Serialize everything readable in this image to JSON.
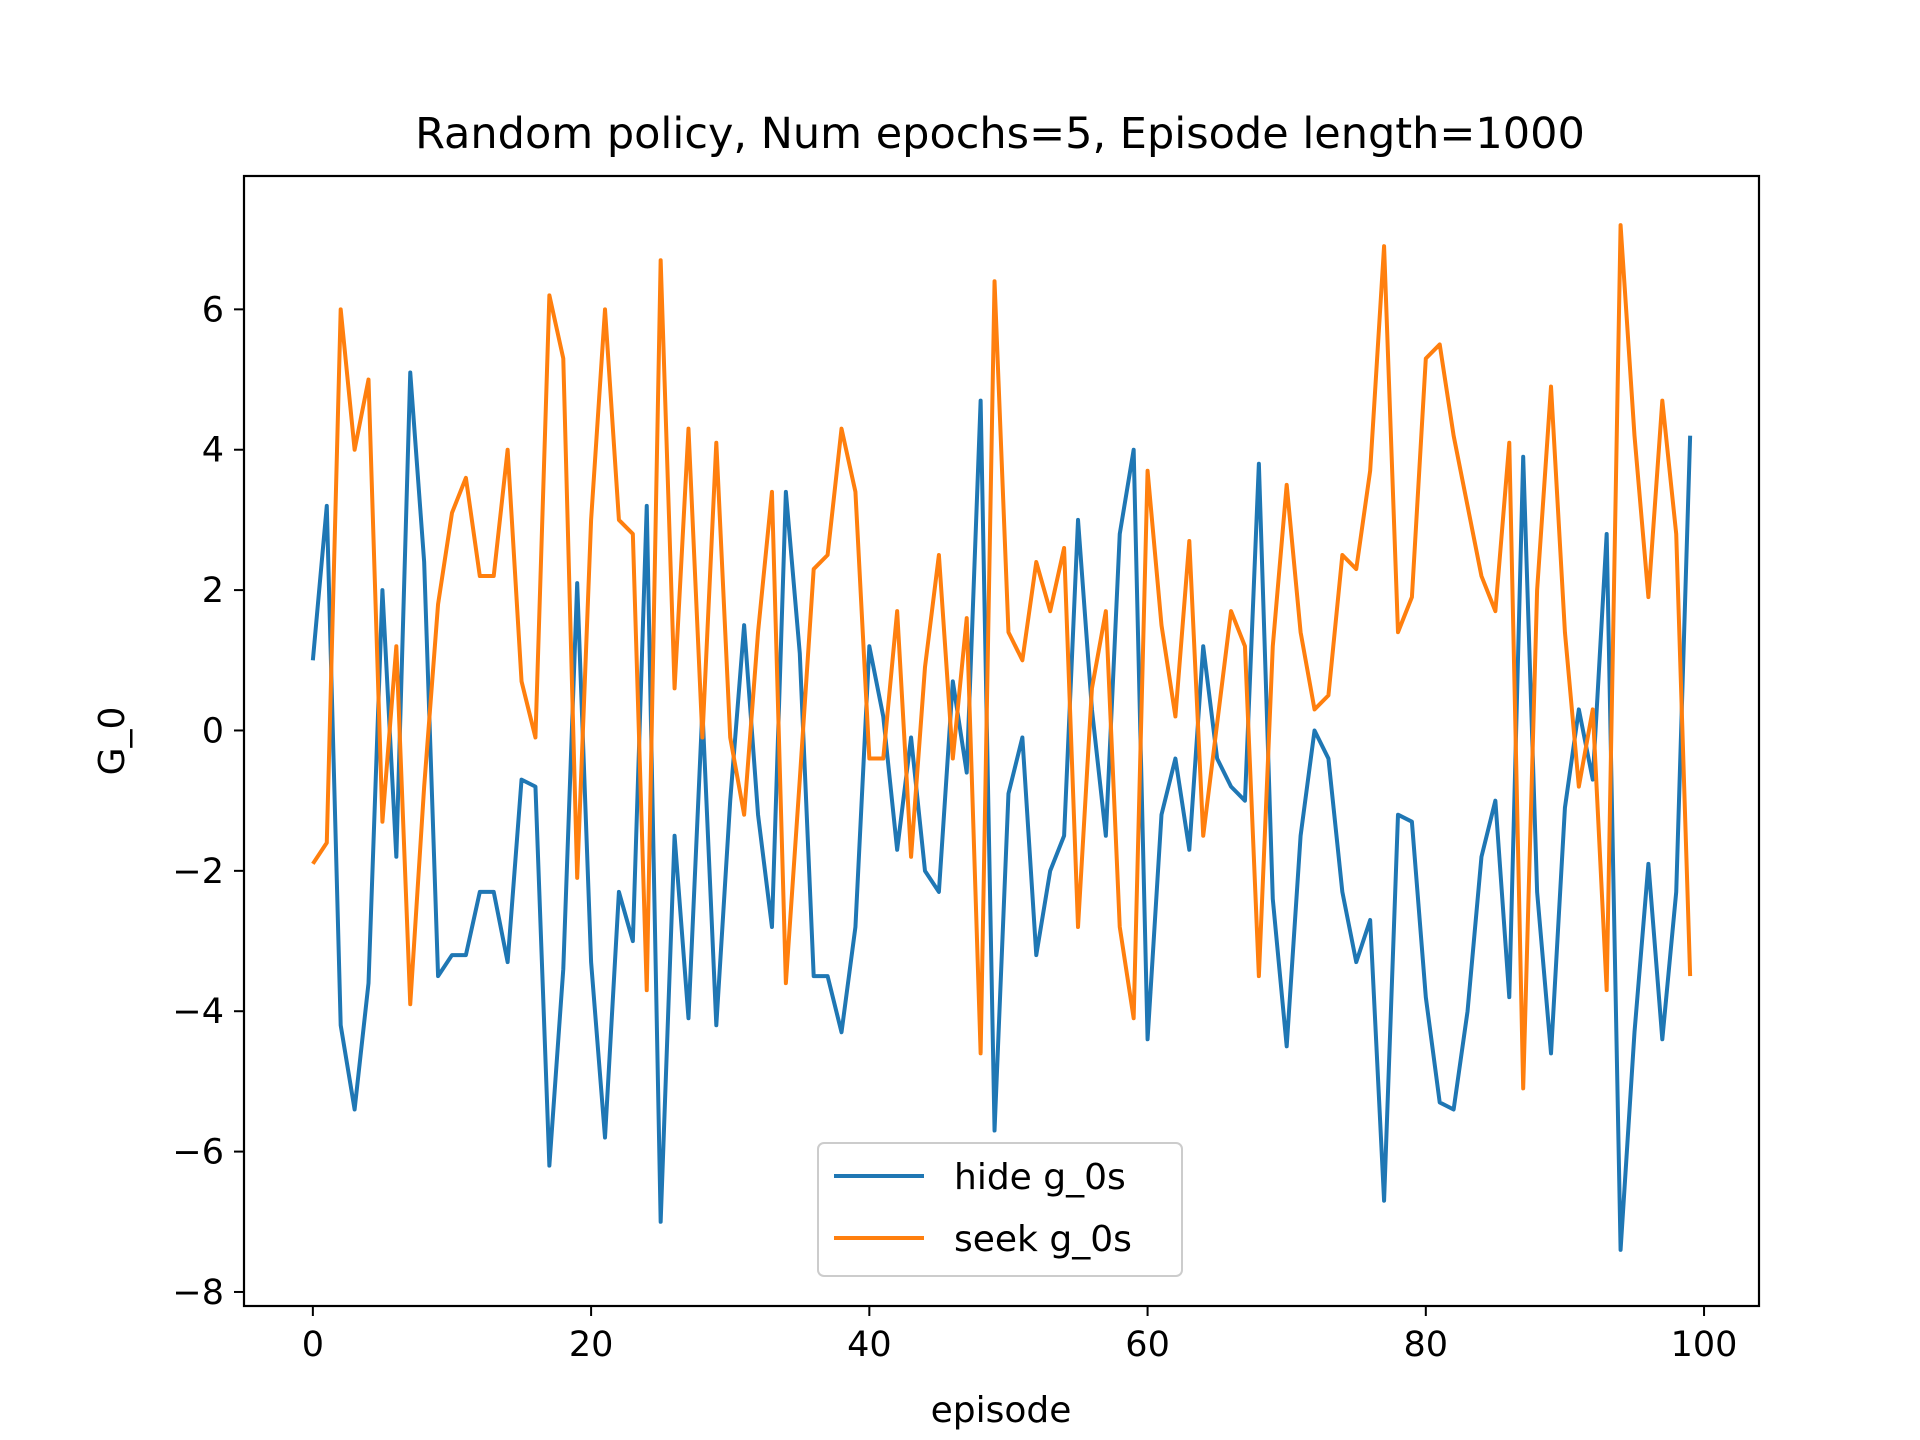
{
  "chart_data": {
    "type": "line",
    "title": "Random policy, Num epochs=5, Episode length=1000",
    "xlabel": "episode",
    "ylabel": "G_0",
    "xlim": [
      -4.95,
      103.95
    ],
    "ylim": [
      -8.2,
      7.9
    ],
    "xticks": [
      0,
      20,
      40,
      60,
      80,
      100
    ],
    "xtick_labels": [
      "0",
      "20",
      "40",
      "60",
      "80",
      "100"
    ],
    "yticks": [
      -8,
      -6,
      -4,
      -2,
      0,
      2,
      4,
      6
    ],
    "ytick_labels": [
      "−8",
      "−6",
      "−4",
      "−2",
      "0",
      "2",
      "4",
      "6"
    ],
    "grid": false,
    "legend_position": "lower-center",
    "x": [
      0,
      1,
      2,
      3,
      4,
      5,
      6,
      7,
      8,
      9,
      10,
      11,
      12,
      13,
      14,
      15,
      16,
      17,
      18,
      19,
      20,
      21,
      22,
      23,
      24,
      25,
      26,
      27,
      28,
      29,
      30,
      31,
      32,
      33,
      34,
      35,
      36,
      37,
      38,
      39,
      40,
      41,
      42,
      43,
      44,
      45,
      46,
      47,
      48,
      49,
      50,
      51,
      52,
      53,
      54,
      55,
      56,
      57,
      58,
      59,
      60,
      61,
      62,
      63,
      64,
      65,
      66,
      67,
      68,
      69,
      70,
      71,
      72,
      73,
      74,
      75,
      76,
      77,
      78,
      79,
      80,
      81,
      82,
      83,
      84,
      85,
      86,
      87,
      88,
      89,
      90,
      91,
      92,
      93,
      94,
      95,
      96,
      97,
      98,
      99
    ],
    "series": [
      {
        "name": "hide g_0s",
        "color": "#1f77b4",
        "values": [
          1.0,
          3.2,
          -4.2,
          -5.4,
          -3.6,
          2.0,
          -1.8,
          5.1,
          2.4,
          -3.5,
          -3.2,
          -3.2,
          -2.3,
          -2.3,
          -3.3,
          -0.7,
          -0.8,
          -6.2,
          -3.4,
          2.1,
          -3.3,
          -5.8,
          -2.3,
          -3.0,
          3.2,
          -7.0,
          -1.5,
          -4.1,
          0.3,
          -4.2,
          -1.0,
          1.5,
          -1.2,
          -2.8,
          3.4,
          1.1,
          -3.5,
          -3.5,
          -4.3,
          -2.8,
          1.2,
          0.2,
          -1.7,
          -0.1,
          -2.0,
          -2.3,
          0.7,
          -0.6,
          4.7,
          -5.7,
          -0.9,
          -0.1,
          -3.2,
          -2.0,
          -1.5,
          3.0,
          0.3,
          -1.5,
          2.8,
          4.0,
          -4.4,
          -1.2,
          -0.4,
          -1.7,
          1.2,
          -0.4,
          -0.8,
          -1.0,
          3.8,
          -2.4,
          -4.5,
          -1.5,
          0.0,
          -0.4,
          -2.3,
          -3.3,
          -2.7,
          -6.7,
          -1.2,
          -1.3,
          -3.8,
          -5.3,
          -5.4,
          -4.0,
          -1.8,
          -1.0,
          -3.8,
          3.9,
          -2.3,
          -4.6,
          -1.1,
          0.3,
          -0.7,
          2.8,
          -7.4,
          -4.3,
          -1.9,
          -4.4,
          -2.3,
          4.2
        ]
      },
      {
        "name": "seek g_0s",
        "color": "#ff7f0e",
        "values": [
          -1.9,
          -1.6,
          6.0,
          4.0,
          5.0,
          -1.3,
          1.2,
          -3.9,
          -0.8,
          1.8,
          3.1,
          3.6,
          2.2,
          2.2,
          4.0,
          0.7,
          -0.1,
          6.2,
          5.3,
          -2.1,
          3.0,
          6.0,
          3.0,
          2.8,
          -3.7,
          6.7,
          0.6,
          4.3,
          -0.1,
          4.1,
          -0.1,
          -1.2,
          1.4,
          3.4,
          -3.6,
          -0.7,
          2.3,
          2.5,
          4.3,
          3.4,
          -0.4,
          -0.4,
          1.7,
          -1.8,
          0.9,
          2.5,
          -0.4,
          1.6,
          -4.6,
          6.4,
          1.4,
          1.0,
          2.4,
          1.7,
          2.6,
          -2.8,
          0.6,
          1.7,
          -2.8,
          -4.1,
          3.7,
          1.5,
          0.2,
          2.7,
          -1.5,
          0.1,
          1.7,
          1.2,
          -3.5,
          1.2,
          3.5,
          1.4,
          0.3,
          0.5,
          2.5,
          2.3,
          3.7,
          6.9,
          1.4,
          1.9,
          5.3,
          5.5,
          4.2,
          3.2,
          2.2,
          1.7,
          4.1,
          -5.1,
          2.0,
          4.9,
          1.4,
          -0.8,
          0.3,
          -3.7,
          7.2,
          4.2,
          1.9,
          4.7,
          2.8,
          -3.5
        ]
      }
    ]
  }
}
